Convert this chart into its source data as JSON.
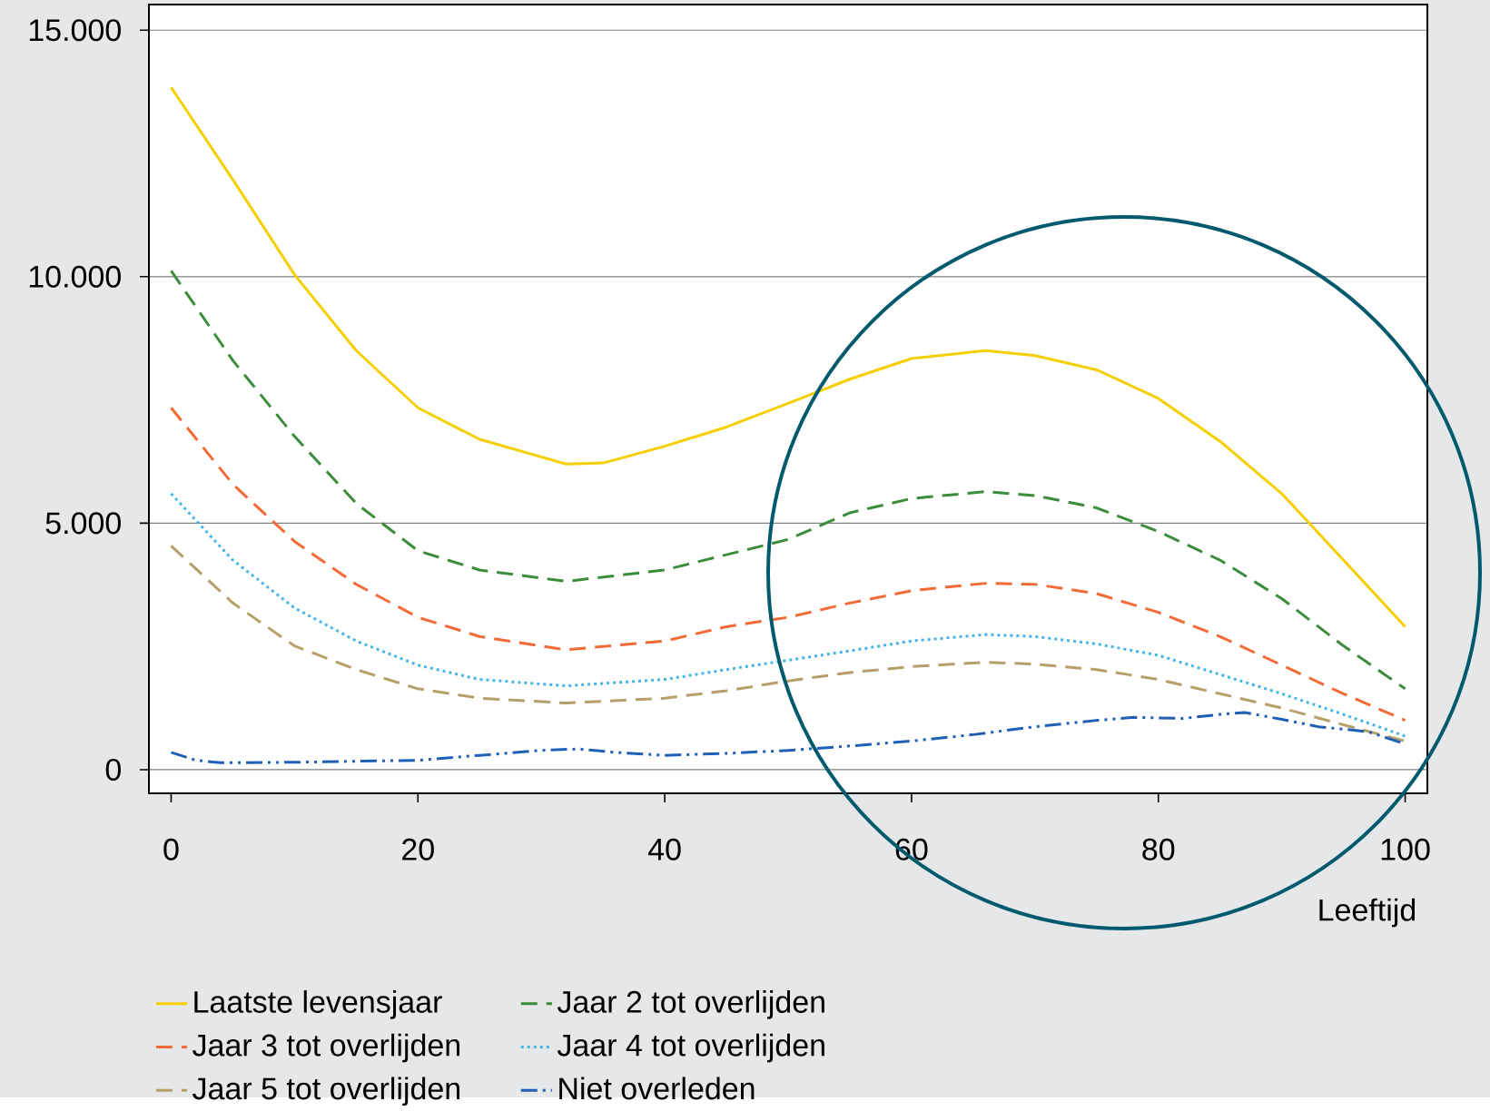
{
  "chart_data": {
    "type": "line",
    "xlabel": "Leeftijd",
    "xlim": [
      -1.8,
      101.8
    ],
    "ylim": [
      -480,
      15520
    ],
    "xticks": [
      0,
      20,
      40,
      60,
      80,
      100
    ],
    "yticks": [
      {
        "value": 0,
        "label": "0"
      },
      {
        "value": 5000,
        "label": "5.000"
      },
      {
        "value": 10000,
        "label": "10.000"
      },
      {
        "value": 15000,
        "label": "15.000"
      }
    ],
    "grid": "y",
    "legend": "bottom",
    "series": [
      {
        "name": "Laatste levensjaar",
        "color": "#f5cf00",
        "line_style": "solid",
        "x": [
          0,
          5,
          10,
          15,
          20,
          25,
          32,
          35,
          40,
          45,
          50,
          55,
          60,
          66,
          70,
          75,
          80,
          85,
          90,
          95,
          100
        ],
        "values": [
          13840,
          11970,
          10040,
          8500,
          7340,
          6700,
          6200,
          6220,
          6560,
          6950,
          7430,
          7920,
          8340,
          8500,
          8400,
          8110,
          7530,
          6660,
          5600,
          4250,
          2900
        ]
      },
      {
        "name": "Jaar 2 tot overlijden",
        "color": "#3b8c3b",
        "line_style": "dashed",
        "x": [
          0,
          5,
          10,
          15,
          20,
          25,
          32,
          40,
          50,
          55,
          60,
          66,
          70,
          75,
          80,
          85,
          90,
          95,
          100
        ],
        "values": [
          10120,
          8300,
          6760,
          5400,
          4440,
          4050,
          3820,
          4050,
          4670,
          5210,
          5500,
          5640,
          5560,
          5310,
          4830,
          4250,
          3470,
          2510,
          1640
        ]
      },
      {
        "name": "Jaar 3 tot overlijden",
        "color": "#f26a35",
        "line_style": "dashed",
        "x": [
          0,
          5,
          10,
          15,
          20,
          25,
          32,
          40,
          45,
          50,
          55,
          60,
          66,
          70,
          75,
          80,
          85,
          90,
          95,
          100
        ],
        "values": [
          7340,
          5790,
          4630,
          3760,
          3090,
          2700,
          2430,
          2610,
          2900,
          3090,
          3380,
          3630,
          3780,
          3760,
          3570,
          3190,
          2700,
          2120,
          1540,
          1000
        ]
      },
      {
        "name": "Jaar 4 tot overlijden",
        "color": "#45b5e8",
        "line_style": "dotted",
        "x": [
          0,
          5,
          10,
          15,
          20,
          25,
          32,
          40,
          45,
          50,
          55,
          60,
          66,
          70,
          75,
          80,
          85,
          90,
          95,
          100
        ],
        "values": [
          5600,
          4250,
          3280,
          2610,
          2120,
          1830,
          1700,
          1830,
          2030,
          2220,
          2410,
          2610,
          2740,
          2700,
          2550,
          2320,
          1930,
          1540,
          1120,
          680
        ]
      },
      {
        "name": "Jaar 5 tot overlijden",
        "color": "#b5a06a",
        "line_style": "dashed",
        "x": [
          0,
          5,
          10,
          15,
          20,
          25,
          32,
          40,
          45,
          50,
          55,
          60,
          66,
          70,
          75,
          80,
          85,
          90,
          95,
          100
        ],
        "values": [
          4540,
          3380,
          2510,
          2030,
          1640,
          1450,
          1350,
          1450,
          1600,
          1800,
          1970,
          2090,
          2180,
          2140,
          2030,
          1830,
          1540,
          1250,
          910,
          580
        ]
      },
      {
        "name": "Niet overleden",
        "color": "#1f5fb5",
        "line_style": "dashdotdotted",
        "x": [
          0,
          2,
          4,
          10,
          20,
          25,
          30,
          33,
          36,
          40,
          45,
          50,
          55,
          60,
          65,
          70,
          75,
          78,
          82,
          85,
          87,
          90,
          93,
          97,
          100
        ],
        "values": [
          350,
          190,
          140,
          150,
          190,
          290,
          390,
          420,
          350,
          290,
          330,
          390,
          480,
          580,
          710,
          870,
          1000,
          1060,
          1040,
          1120,
          1160,
          1020,
          870,
          770,
          520
        ]
      }
    ]
  }
}
